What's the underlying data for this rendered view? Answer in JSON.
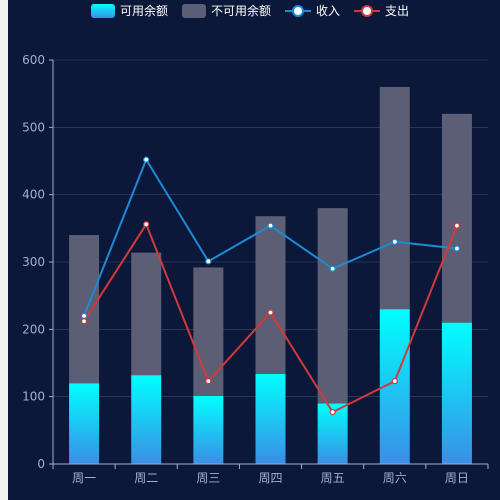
{
  "legend": {
    "available": "可用余额",
    "unavailable": "不可用余额",
    "income": "收入",
    "expense": "支出"
  },
  "colors": {
    "background": "#0b1839",
    "available_top": "#00ffff",
    "available_bottom": "#3a8ee6",
    "unavailable": "#5b5e74",
    "income": "#1f8ad4",
    "expense": "#d03a3a",
    "axis": "#9fb0d0",
    "grid": "#3a4a6a"
  },
  "chart_data": {
    "type": "bar",
    "stacked": true,
    "categories": [
      "周一",
      "周二",
      "周三",
      "周四",
      "周五",
      "周六",
      "周日"
    ],
    "ylim": [
      0,
      600
    ],
    "yticks": [
      0,
      100,
      200,
      300,
      400,
      500,
      600
    ],
    "grid": true,
    "legend_position": "top-center",
    "series": [
      {
        "name": "可用余额",
        "type": "bar",
        "stack": "total",
        "values": [
          120,
          132,
          101,
          134,
          90,
          230,
          210
        ]
      },
      {
        "name": "不可用余额",
        "type": "bar",
        "stack": "total",
        "values": [
          220,
          182,
          191,
          234,
          290,
          330,
          310
        ]
      },
      {
        "name": "收入",
        "type": "line",
        "values": [
          220,
          452,
          301,
          354,
          290,
          330,
          320
        ]
      },
      {
        "name": "支出",
        "type": "line",
        "values": [
          212,
          356,
          123,
          225,
          77,
          123,
          354
        ]
      }
    ]
  }
}
